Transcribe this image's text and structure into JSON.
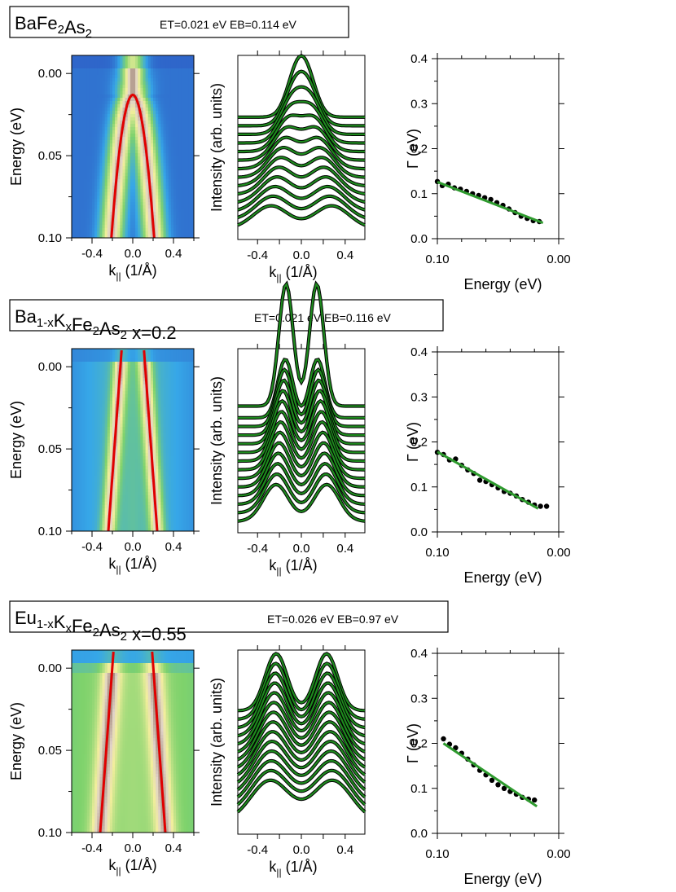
{
  "colors": {
    "fit_line": "#e00000",
    "edc_data": "#000000",
    "edc_fit": "#1e8a1e",
    "gamma_points": "#000000",
    "gamma_fit": "#2e9a2e",
    "map_low": "#2a3fb8",
    "map_mid": "#36a7e8",
    "map_green": "#7ed26c",
    "map_yellow": "#f2ee9c",
    "map_brown": "#8a6a58"
  },
  "panels": [
    {
      "title_main": "BaFe",
      "title_sub1": "2",
      "title_mid": "As",
      "title_sub2": "2",
      "title_tail": "",
      "params": "ET=0.021 eV EB=0.114 eV",
      "map": {
        "x_ticks": [
          "-0.4",
          "0.0",
          "0.4"
        ],
        "y_ticks": [
          "0.00",
          "0.05",
          "0.10"
        ],
        "xlabel_main": "k",
        "xlabel_sub": "||",
        "xlabel_unit": " (1/Å)",
        "ylabel": "Energy (eV)",
        "band": "parabola",
        "dispersion": {
          "k_at_top": [
            0.0,
            0.0
          ],
          "energy_top": 0.013,
          "k_at_bottom": [
            -0.21,
            0.21
          ],
          "energy_bottom": 0.1
        }
      },
      "mdc": {
        "ylabel": "Intensity (arb. units)",
        "x_ticks": [
          "-0.4",
          "0.0",
          "0.4"
        ],
        "xlabel_main": "k",
        "xlabel_sub": "||",
        "xlabel_unit": " (1/Å)",
        "peak_k": 0.05,
        "peak_width": 0.09
      },
      "gamma": {
        "ylabel": "Γ (eV)",
        "xlabel": "Energy (eV)",
        "x_ticks": [
          "0.10",
          "0.00"
        ],
        "y_ticks": [
          "0.0",
          "0.1",
          "0.2",
          "0.3",
          "0.4"
        ],
        "xlim": [
          0.1,
          0.0
        ],
        "ylim": [
          0.0,
          0.4
        ],
        "points": [
          [
            0.1,
            0.127
          ],
          [
            0.096,
            0.118
          ],
          [
            0.091,
            0.121
          ],
          [
            0.086,
            0.113
          ],
          [
            0.081,
            0.11
          ],
          [
            0.076,
            0.105
          ],
          [
            0.071,
            0.1
          ],
          [
            0.066,
            0.096
          ],
          [
            0.061,
            0.091
          ],
          [
            0.056,
            0.087
          ],
          [
            0.051,
            0.08
          ],
          [
            0.046,
            0.074
          ],
          [
            0.041,
            0.066
          ],
          [
            0.036,
            0.058
          ],
          [
            0.031,
            0.05
          ],
          [
            0.026,
            0.045
          ],
          [
            0.021,
            0.04
          ],
          [
            0.016,
            0.038
          ]
        ],
        "fit": [
          [
            0.1,
            0.126
          ],
          [
            0.013,
            0.035
          ]
        ]
      }
    },
    {
      "title_main": "Ba",
      "title_sub1": "1-x",
      "title_mid": "K",
      "title_sub2": "x",
      "title_tail": "Fe2As2 x=0.2",
      "params": "ET=0.021 eV  EB=0.116 eV",
      "map": {
        "x_ticks": [
          "-0.4",
          "0.0",
          "0.4"
        ],
        "y_ticks": [
          "0.00",
          "0.05",
          "0.10"
        ],
        "xlabel_main": "k",
        "xlabel_sub": "||",
        "xlabel_unit": " (1/Å)",
        "ylabel": "Energy (eV)",
        "band": "linear",
        "dispersion": {
          "k_at_top": [
            -0.11,
            0.11
          ],
          "energy_top": -0.01,
          "k_at_bottom": [
            -0.24,
            0.24
          ],
          "energy_bottom": 0.1
        }
      },
      "mdc": {
        "ylabel": "Intensity (arb. units)",
        "x_ticks": [
          "-0.4",
          "0.0",
          "0.4"
        ],
        "xlabel_main": "k",
        "xlabel_sub": "||",
        "xlabel_unit": " (1/Å)",
        "peak_k": 0.14,
        "peak_width": 0.065
      },
      "gamma": {
        "ylabel": "Γ (eV)",
        "xlabel": "Energy (eV)",
        "x_ticks": [
          "0.10",
          "0.00"
        ],
        "y_ticks": [
          "0.0",
          "0.1",
          "0.2",
          "0.3",
          "0.4"
        ],
        "xlim": [
          0.1,
          0.0
        ],
        "ylim": [
          0.0,
          0.4
        ],
        "points": [
          [
            0.1,
            0.177
          ],
          [
            0.095,
            0.172
          ],
          [
            0.09,
            0.16
          ],
          [
            0.085,
            0.162
          ],
          [
            0.08,
            0.148
          ],
          [
            0.075,
            0.138
          ],
          [
            0.07,
            0.13
          ],
          [
            0.065,
            0.115
          ],
          [
            0.06,
            0.112
          ],
          [
            0.055,
            0.105
          ],
          [
            0.05,
            0.098
          ],
          [
            0.045,
            0.09
          ],
          [
            0.04,
            0.086
          ],
          [
            0.035,
            0.08
          ],
          [
            0.03,
            0.072
          ],
          [
            0.025,
            0.066
          ],
          [
            0.02,
            0.06
          ],
          [
            0.015,
            0.057
          ],
          [
            0.01,
            0.057
          ]
        ],
        "fit": [
          [
            0.1,
            0.178
          ],
          [
            0.017,
            0.052
          ]
        ]
      }
    },
    {
      "title_main": "Eu",
      "title_sub1": "1-x",
      "title_mid": "K",
      "title_sub2": "x",
      "title_tail": "Fe2As2 x=0.55",
      "params": "ET=0.026 eV  EB=0.97 eV",
      "map": {
        "x_ticks": [
          "-0.4",
          "0.0",
          "0.4"
        ],
        "y_ticks": [
          "0.00",
          "0.05",
          "0.10"
        ],
        "xlabel_main": "k",
        "xlabel_sub": "||",
        "xlabel_unit": " (1/Å)",
        "ylabel": "Energy (eV)",
        "band": "linear",
        "dispersion": {
          "k_at_top": [
            -0.19,
            0.19
          ],
          "energy_top": -0.01,
          "k_at_bottom": [
            -0.32,
            0.32
          ],
          "energy_bottom": 0.1
        }
      },
      "mdc": {
        "ylabel": "Intensity (arb. units)",
        "x_ticks": [
          "-0.4",
          "0.0",
          "0.4"
        ],
        "xlabel_main": "k",
        "xlabel_sub": "||",
        "xlabel_unit": " (1/Å)",
        "peak_k": 0.23,
        "peak_width": 0.1
      },
      "gamma": {
        "ylabel": "Γ (eV)",
        "xlabel": "Energy (eV)",
        "x_ticks": [
          "0.10",
          "0.00"
        ],
        "y_ticks": [
          "0.0",
          "0.1",
          "0.2",
          "0.3",
          "0.4"
        ],
        "xlim": [
          0.1,
          0.0
        ],
        "ylim": [
          0.0,
          0.4
        ],
        "points": [
          [
            0.095,
            0.21
          ],
          [
            0.09,
            0.198
          ],
          [
            0.085,
            0.19
          ],
          [
            0.08,
            0.178
          ],
          [
            0.075,
            0.165
          ],
          [
            0.07,
            0.152
          ],
          [
            0.065,
            0.14
          ],
          [
            0.06,
            0.13
          ],
          [
            0.055,
            0.118
          ],
          [
            0.05,
            0.108
          ],
          [
            0.045,
            0.1
          ],
          [
            0.04,
            0.093
          ],
          [
            0.035,
            0.087
          ],
          [
            0.03,
            0.08
          ],
          [
            0.025,
            0.076
          ],
          [
            0.02,
            0.074
          ]
        ],
        "fit": [
          [
            0.095,
            0.2
          ],
          [
            0.018,
            0.06
          ]
        ]
      }
    }
  ]
}
